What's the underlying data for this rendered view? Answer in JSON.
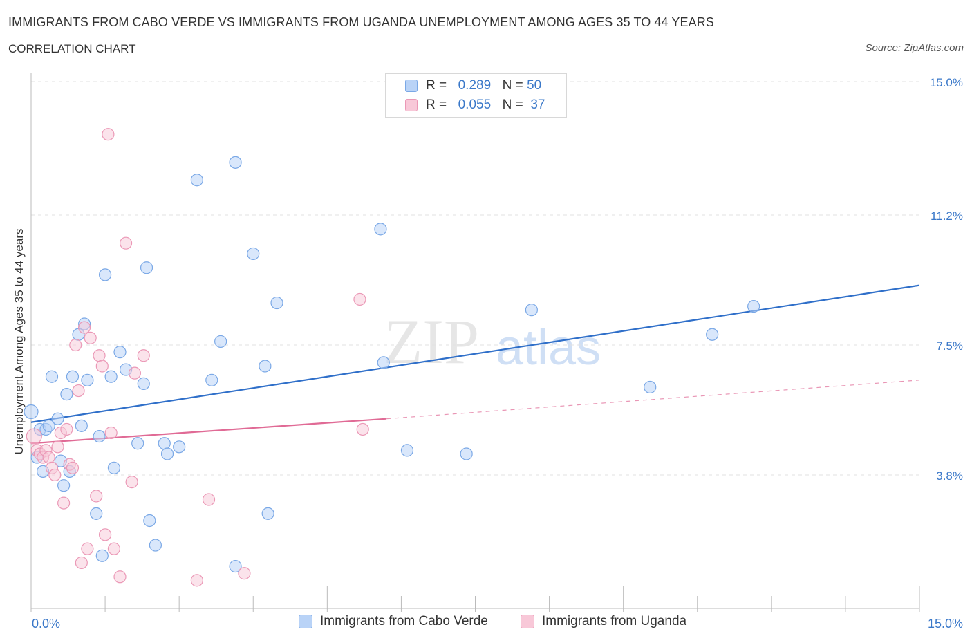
{
  "title": "IMMIGRANTS FROM CABO VERDE VS IMMIGRANTS FROM UGANDA UNEMPLOYMENT AMONG AGES 35 TO 44 YEARS",
  "subtitle": "CORRELATION CHART",
  "source": "Source: ZipAtlas.com",
  "watermark": {
    "zip": "ZIP",
    "atlas": "atlas"
  },
  "legend": {
    "r_label": "R =",
    "n_label": "N =",
    "series": [
      {
        "r": "0.289",
        "n": "50"
      },
      {
        "r": "0.055",
        "n": "37"
      }
    ]
  },
  "colors": {
    "blue_fill": "#b9d3f7",
    "blue_stroke": "#7aa8e6",
    "blue_line": "#2f6fc9",
    "pink_fill": "#f8c8d8",
    "pink_stroke": "#eb98b6",
    "pink_line": "#e06a95",
    "axis_label": "#3a78c9",
    "grid": "#e2e2e2"
  },
  "chart_data": {
    "type": "scatter",
    "title": "IMMIGRANTS FROM CABO VERDE VS IMMIGRANTS FROM UGANDA UNEMPLOYMENT AMONG AGES 35 TO 44 YEARS",
    "xlabel": "",
    "ylabel": "Unemployment Among Ages 35 to 44 years",
    "xlim": [
      0,
      15
    ],
    "ylim": [
      0,
      15
    ],
    "x_tick_labels": [
      "0.0%",
      "15.0%"
    ],
    "y_ticks": [
      3.8,
      7.5,
      11.2,
      15.0
    ],
    "y_tick_labels": [
      "3.8%",
      "7.5%",
      "11.2%",
      "15.0%"
    ],
    "grid": true,
    "legend_position": "top-center",
    "series": [
      {
        "name": "Immigrants from Cabo Verde",
        "color": "blue",
        "trend": {
          "x": [
            0,
            15
          ],
          "y": [
            5.3,
            9.2
          ]
        },
        "points": [
          [
            0.0,
            5.6
          ],
          [
            0.1,
            4.3
          ],
          [
            0.15,
            5.1
          ],
          [
            0.2,
            3.9
          ],
          [
            0.25,
            5.1
          ],
          [
            0.3,
            5.2
          ],
          [
            0.35,
            6.6
          ],
          [
            0.45,
            5.4
          ],
          [
            0.5,
            4.2
          ],
          [
            0.55,
            3.5
          ],
          [
            0.6,
            6.1
          ],
          [
            0.65,
            3.9
          ],
          [
            0.7,
            6.6
          ],
          [
            0.8,
            7.8
          ],
          [
            0.85,
            5.2
          ],
          [
            0.9,
            8.1
          ],
          [
            0.95,
            6.5
          ],
          [
            1.1,
            2.7
          ],
          [
            1.15,
            4.9
          ],
          [
            1.2,
            1.5
          ],
          [
            1.25,
            9.5
          ],
          [
            1.35,
            6.6
          ],
          [
            1.4,
            4.0
          ],
          [
            1.5,
            7.3
          ],
          [
            1.6,
            6.8
          ],
          [
            1.8,
            4.7
          ],
          [
            1.9,
            6.4
          ],
          [
            1.95,
            9.7
          ],
          [
            2.0,
            2.5
          ],
          [
            2.1,
            1.8
          ],
          [
            2.25,
            4.7
          ],
          [
            2.3,
            4.4
          ],
          [
            2.5,
            4.6
          ],
          [
            2.8,
            12.2
          ],
          [
            3.05,
            6.5
          ],
          [
            3.2,
            7.6
          ],
          [
            3.45,
            12.7
          ],
          [
            3.45,
            1.2
          ],
          [
            3.75,
            10.1
          ],
          [
            3.95,
            6.9
          ],
          [
            4.0,
            2.7
          ],
          [
            4.15,
            8.7
          ],
          [
            5.9,
            10.8
          ],
          [
            5.95,
            7.0
          ],
          [
            6.35,
            4.5
          ],
          [
            7.35,
            4.4
          ],
          [
            8.45,
            8.5
          ],
          [
            10.45,
            6.3
          ],
          [
            11.5,
            7.8
          ],
          [
            12.2,
            8.6
          ]
        ]
      },
      {
        "name": "Immigrants from Uganda",
        "color": "pink",
        "trend": {
          "x": [
            0,
            6.0
          ],
          "y": [
            4.7,
            5.4
          ]
        },
        "trend_dashed": {
          "x": [
            6.0,
            15
          ],
          "y": [
            5.4,
            6.5
          ]
        },
        "points": [
          [
            0.05,
            4.9
          ],
          [
            0.1,
            4.5
          ],
          [
            0.15,
            4.4
          ],
          [
            0.2,
            4.3
          ],
          [
            0.25,
            4.5
          ],
          [
            0.3,
            4.3
          ],
          [
            0.35,
            4.0
          ],
          [
            0.4,
            3.8
          ],
          [
            0.45,
            4.6
          ],
          [
            0.5,
            5.0
          ],
          [
            0.55,
            3.0
          ],
          [
            0.6,
            5.1
          ],
          [
            0.65,
            4.1
          ],
          [
            0.7,
            4.0
          ],
          [
            0.75,
            7.5
          ],
          [
            0.8,
            6.2
          ],
          [
            0.85,
            1.3
          ],
          [
            0.9,
            8.0
          ],
          [
            0.95,
            1.7
          ],
          [
            1.0,
            7.7
          ],
          [
            1.1,
            3.2
          ],
          [
            1.15,
            7.2
          ],
          [
            1.2,
            6.9
          ],
          [
            1.25,
            2.1
          ],
          [
            1.3,
            13.5
          ],
          [
            1.35,
            5.0
          ],
          [
            1.4,
            1.7
          ],
          [
            1.5,
            0.9
          ],
          [
            1.6,
            10.4
          ],
          [
            1.7,
            3.6
          ],
          [
            1.75,
            6.7
          ],
          [
            1.9,
            7.2
          ],
          [
            2.8,
            0.8
          ],
          [
            3.0,
            3.1
          ],
          [
            3.6,
            1.0
          ],
          [
            5.55,
            8.8
          ],
          [
            5.6,
            5.1
          ]
        ]
      }
    ],
    "bottom_legend": [
      "Immigrants from Cabo Verde",
      "Immigrants from Uganda"
    ]
  }
}
